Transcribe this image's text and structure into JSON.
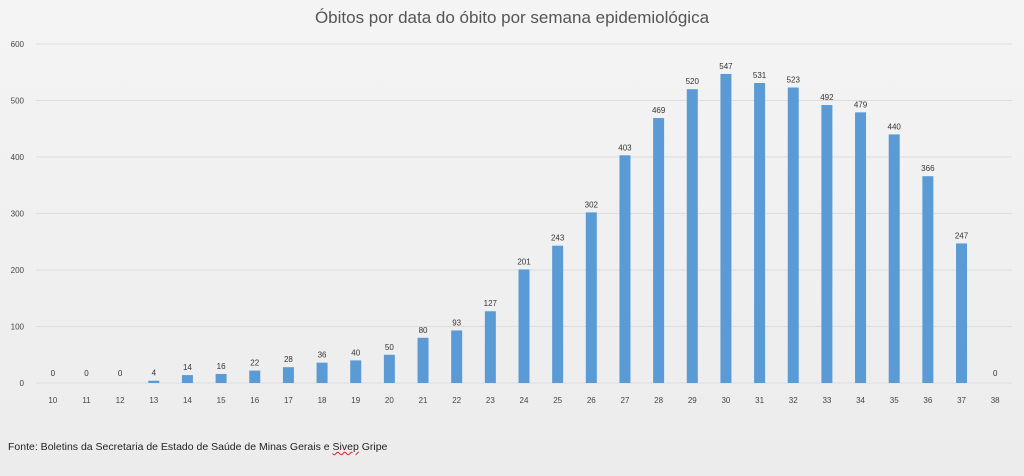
{
  "chart_data": {
    "type": "bar",
    "title": "Óbitos por data do óbito por semana epidemiológica",
    "xlabel": "",
    "ylabel": "",
    "categories": [
      "10",
      "11",
      "12",
      "13",
      "14",
      "15",
      "16",
      "17",
      "18",
      "19",
      "20",
      "21",
      "22",
      "23",
      "24",
      "25",
      "26",
      "27",
      "28",
      "29",
      "30",
      "31",
      "32",
      "33",
      "34",
      "35",
      "36",
      "37",
      "38"
    ],
    "values": [
      0,
      0,
      0,
      4,
      14,
      16,
      22,
      28,
      36,
      40,
      50,
      80,
      93,
      127,
      201,
      243,
      302,
      403,
      469,
      520,
      547,
      531,
      523,
      492,
      479,
      440,
      366,
      247,
      0
    ],
    "ylim": [
      0,
      600
    ],
    "yticks": [
      0,
      100,
      200,
      300,
      400,
      500,
      600
    ],
    "grid": true,
    "legend": "none",
    "bar_color": "#5b9bd5",
    "source": {
      "prefix": "Fonte: Boletins da Secretaria de Estado de Saúde de Minas Gerais e ",
      "underlined": "Sivep",
      "suffix": " Gripe"
    }
  }
}
